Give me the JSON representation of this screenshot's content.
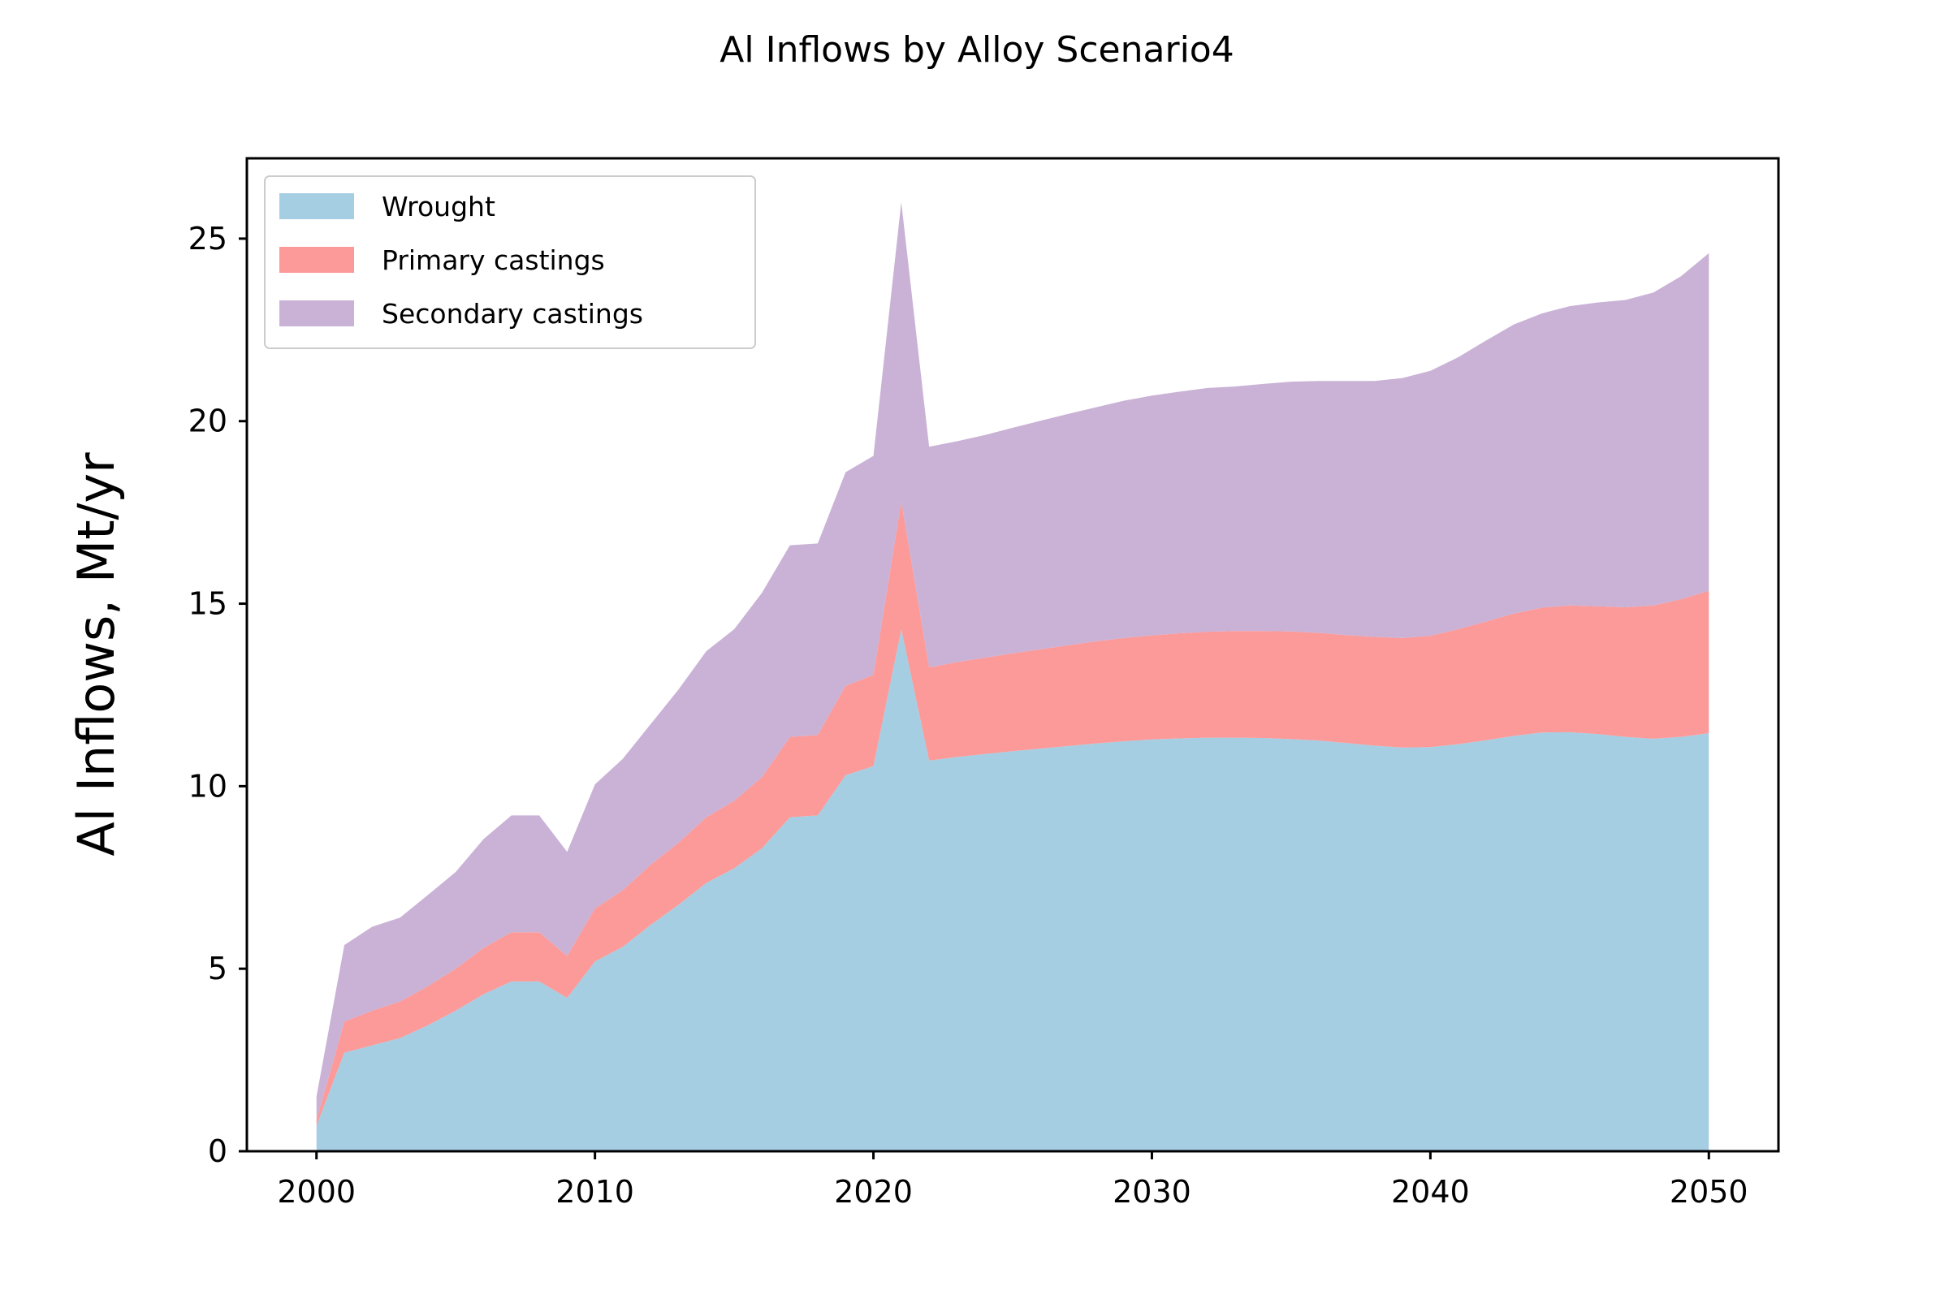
{
  "chart_data": {
    "type": "area",
    "stacked": true,
    "title": "Al Inflows by Alloy Scenario4",
    "xlabel": "",
    "ylabel": "Al Inflows, Mt/yr",
    "xlim": [
      1997.5,
      2052.5
    ],
    "ylim": [
      0,
      27.2
    ],
    "xticks": [
      2000,
      2010,
      2020,
      2030,
      2040,
      2050
    ],
    "yticks": [
      0,
      5,
      10,
      15,
      20,
      25
    ],
    "grid": false,
    "legend_position": "upper left",
    "x": [
      2000,
      2001,
      2002,
      2003,
      2004,
      2005,
      2006,
      2007,
      2008,
      2009,
      2010,
      2011,
      2012,
      2013,
      2014,
      2015,
      2016,
      2017,
      2018,
      2019,
      2020,
      2021,
      2022,
      2023,
      2024,
      2025,
      2026,
      2027,
      2028,
      2029,
      2030,
      2031,
      2032,
      2033,
      2034,
      2035,
      2036,
      2037,
      2038,
      2039,
      2040,
      2041,
      2042,
      2043,
      2044,
      2045,
      2046,
      2047,
      2048,
      2049,
      2050
    ],
    "series": [
      {
        "name": "Wrought",
        "color": "#a6cee3",
        "values": [
          0.7,
          2.7,
          2.9,
          3.1,
          3.45,
          3.85,
          4.3,
          4.65,
          4.65,
          4.2,
          5.2,
          5.6,
          6.2,
          6.75,
          7.35,
          7.75,
          8.3,
          9.15,
          9.2,
          10.3,
          10.55,
          14.3,
          10.7,
          10.8,
          10.88,
          10.96,
          11.03,
          11.1,
          11.17,
          11.23,
          11.28,
          11.31,
          11.33,
          11.33,
          11.32,
          11.29,
          11.25,
          11.18,
          11.11,
          11.06,
          11.07,
          11.15,
          11.26,
          11.38,
          11.47,
          11.48,
          11.43,
          11.35,
          11.3,
          11.35,
          11.45
        ]
      },
      {
        "name": "Primary castings",
        "color": "#fb9a99",
        "values": [
          0.15,
          0.85,
          0.95,
          1.0,
          1.07,
          1.15,
          1.27,
          1.35,
          1.35,
          1.15,
          1.45,
          1.55,
          1.65,
          1.7,
          1.8,
          1.85,
          1.95,
          2.2,
          2.2,
          2.45,
          2.5,
          3.5,
          2.55,
          2.6,
          2.64,
          2.68,
          2.72,
          2.76,
          2.8,
          2.83,
          2.85,
          2.88,
          2.9,
          2.92,
          2.93,
          2.95,
          2.95,
          2.96,
          2.98,
          3.0,
          3.05,
          3.15,
          3.25,
          3.35,
          3.42,
          3.47,
          3.5,
          3.55,
          3.65,
          3.77,
          3.9
        ]
      },
      {
        "name": "Secondary castings",
        "color": "#cab2d6",
        "values": [
          0.65,
          2.1,
          2.3,
          2.3,
          2.5,
          2.65,
          2.98,
          3.2,
          3.2,
          2.85,
          3.4,
          3.6,
          3.85,
          4.2,
          4.55,
          4.7,
          5.05,
          5.25,
          5.25,
          5.85,
          6.0,
          8.2,
          6.05,
          6.05,
          6.1,
          6.18,
          6.26,
          6.34,
          6.41,
          6.5,
          6.57,
          6.62,
          6.68,
          6.7,
          6.77,
          6.84,
          6.9,
          6.96,
          7.01,
          7.12,
          7.26,
          7.45,
          7.7,
          7.92,
          8.06,
          8.2,
          8.32,
          8.42,
          8.57,
          8.85,
          9.25
        ]
      }
    ]
  }
}
